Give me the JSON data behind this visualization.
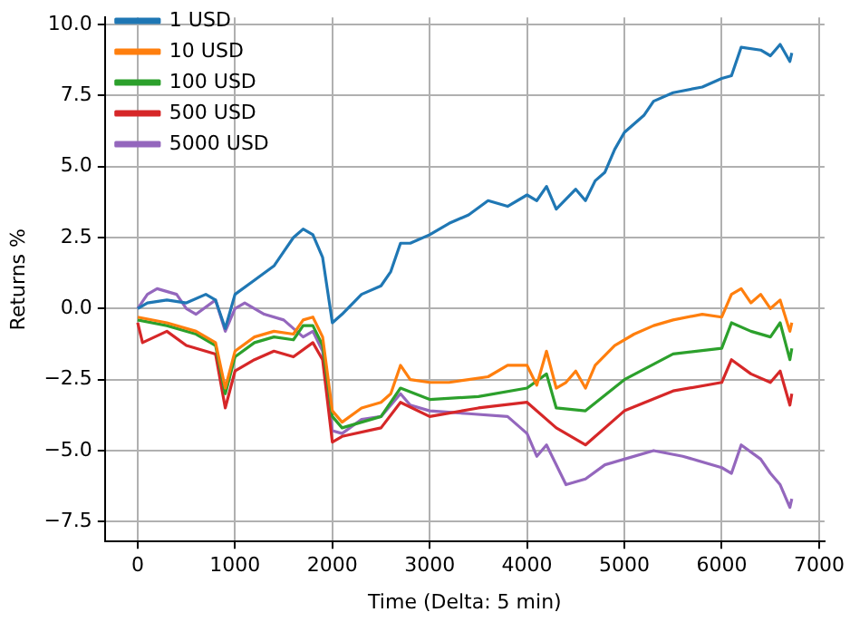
{
  "chart_data": {
    "type": "line",
    "xlabel": "Time (Delta: 5 min)",
    "ylabel": "Returns %",
    "xlim": [
      -336,
      7056
    ],
    "ylim": [
      -8.2,
      10.25
    ],
    "xticks": [
      0,
      1000,
      2000,
      3000,
      4000,
      5000,
      6000,
      7000
    ],
    "yticks": [
      {
        "value": -7.5,
        "label": "−7.5"
      },
      {
        "value": -5,
        "label": "−5.0"
      },
      {
        "value": -2.5,
        "label": "−2.5"
      },
      {
        "value": 0,
        "label": "0.0"
      },
      {
        "value": 2.5,
        "label": "2.5"
      },
      {
        "value": 5,
        "label": "5.0"
      },
      {
        "value": 7.5,
        "label": "7.5"
      },
      {
        "value": 10,
        "label": "10.0"
      }
    ],
    "grid": true,
    "legend": "top left",
    "marker": "none",
    "line_style": "solid",
    "series": [
      {
        "name": "1 USD",
        "color": "#1f77b4",
        "x": [
          0,
          100,
          300,
          500,
          700,
          800,
          900,
          1000,
          1200,
          1400,
          1500,
          1600,
          1700,
          1800,
          1900,
          2000,
          2100,
          2300,
          2500,
          2600,
          2700,
          2800,
          3000,
          3200,
          3400,
          3600,
          3800,
          4000,
          4100,
          4200,
          4300,
          4500,
          4600,
          4700,
          4800,
          4900,
          5000,
          5200,
          5300,
          5500,
          5800,
          6000,
          6100,
          6200,
          6400,
          6500,
          6600,
          6700,
          6720
        ],
        "values": [
          0,
          0.2,
          0.3,
          0.2,
          0.5,
          0.3,
          -0.7,
          0.5,
          1,
          1.5,
          2,
          2.5,
          2.8,
          2.6,
          1.8,
          -0.5,
          -0.2,
          0.5,
          0.8,
          1.3,
          2.3,
          2.3,
          2.6,
          3,
          3.3,
          3.8,
          3.6,
          4,
          3.8,
          4.3,
          3.5,
          4.2,
          3.8,
          4.5,
          4.8,
          5.6,
          6.2,
          6.8,
          7.3,
          7.6,
          7.8,
          8.1,
          8.2,
          9.2,
          9.1,
          8.9,
          9.3,
          8.7,
          9
        ]
      },
      {
        "name": "10 USD",
        "color": "#ff7f0e",
        "x": [
          0,
          300,
          600,
          800,
          900,
          1000,
          1200,
          1400,
          1600,
          1700,
          1800,
          1900,
          2000,
          2100,
          2300,
          2500,
          2600,
          2700,
          2800,
          3000,
          3200,
          3400,
          3600,
          3800,
          4000,
          4100,
          4200,
          4300,
          4400,
          4500,
          4600,
          4700,
          4900,
          5100,
          5300,
          5500,
          5800,
          6000,
          6100,
          6200,
          6300,
          6400,
          6500,
          6600,
          6700,
          6720
        ],
        "values": [
          -0.3,
          -0.5,
          -0.8,
          -1.2,
          -2.8,
          -1.5,
          -1,
          -0.8,
          -0.9,
          -0.4,
          -0.3,
          -1,
          -3.6,
          -4,
          -3.5,
          -3.3,
          -3,
          -2,
          -2.5,
          -2.6,
          -2.6,
          -2.5,
          -2.4,
          -2,
          -2,
          -2.7,
          -1.5,
          -2.8,
          -2.6,
          -2.2,
          -2.8,
          -2,
          -1.3,
          -0.9,
          -0.6,
          -0.4,
          -0.2,
          -0.3,
          0.5,
          0.7,
          0.2,
          0.5,
          0,
          0.3,
          -0.8,
          -0.5
        ]
      },
      {
        "name": "100 USD",
        "color": "#2ca02c",
        "x": [
          0,
          300,
          600,
          800,
          900,
          1000,
          1200,
          1400,
          1600,
          1700,
          1800,
          1900,
          2000,
          2100,
          2500,
          2700,
          3000,
          3500,
          4000,
          4200,
          4300,
          4600,
          5000,
          5500,
          6000,
          6100,
          6300,
          6500,
          6600,
          6700,
          6720
        ],
        "values": [
          -0.4,
          -0.6,
          -0.9,
          -1.3,
          -3,
          -1.7,
          -1.2,
          -1,
          -1.1,
          -0.6,
          -0.6,
          -1.3,
          -3.8,
          -4.2,
          -3.8,
          -2.8,
          -3.2,
          -3.1,
          -2.8,
          -2.3,
          -3.5,
          -3.6,
          -2.5,
          -1.6,
          -1.4,
          -0.5,
          -0.8,
          -1,
          -0.5,
          -1.8,
          -1.4
        ]
      },
      {
        "name": "500 USD",
        "color": "#d62728",
        "x": [
          0,
          50,
          300,
          500,
          800,
          900,
          1000,
          1200,
          1400,
          1600,
          1800,
          1900,
          2000,
          2100,
          2500,
          2700,
          3000,
          3500,
          4000,
          4300,
          4600,
          5000,
          5500,
          6000,
          6100,
          6300,
          6500,
          6600,
          6700,
          6720
        ],
        "values": [
          -0.5,
          -1.2,
          -0.8,
          -1.3,
          -1.6,
          -3.5,
          -2.2,
          -1.8,
          -1.5,
          -1.7,
          -1.2,
          -1.8,
          -4.7,
          -4.5,
          -4.2,
          -3.3,
          -3.8,
          -3.5,
          -3.3,
          -4.2,
          -4.8,
          -3.6,
          -2.9,
          -2.6,
          -1.8,
          -2.3,
          -2.6,
          -2.2,
          -3.4,
          -3
        ]
      },
      {
        "name": "5000 USD",
        "color": "#9467bd",
        "x": [
          0,
          100,
          200,
          400,
          500,
          600,
          800,
          900,
          1000,
          1100,
          1300,
          1500,
          1700,
          1800,
          1900,
          2000,
          2100,
          2300,
          2500,
          2700,
          2800,
          3000,
          3400,
          3800,
          4000,
          4100,
          4200,
          4400,
          4600,
          4800,
          5000,
          5300,
          5600,
          6000,
          6100,
          6200,
          6400,
          6500,
          6600,
          6700,
          6720
        ],
        "values": [
          0,
          0.5,
          0.7,
          0.5,
          0,
          -0.2,
          0.3,
          -0.8,
          0,
          0.2,
          -0.2,
          -0.4,
          -1,
          -0.8,
          -1.5,
          -4.3,
          -4.4,
          -3.9,
          -3.8,
          -3,
          -3.4,
          -3.6,
          -3.7,
          -3.8,
          -4.4,
          -5.2,
          -4.8,
          -6.2,
          -6,
          -5.5,
          -5.3,
          -5,
          -5.2,
          -5.6,
          -5.8,
          -4.8,
          -5.3,
          -5.8,
          -6.2,
          -7,
          -6.7
        ]
      }
    ]
  }
}
